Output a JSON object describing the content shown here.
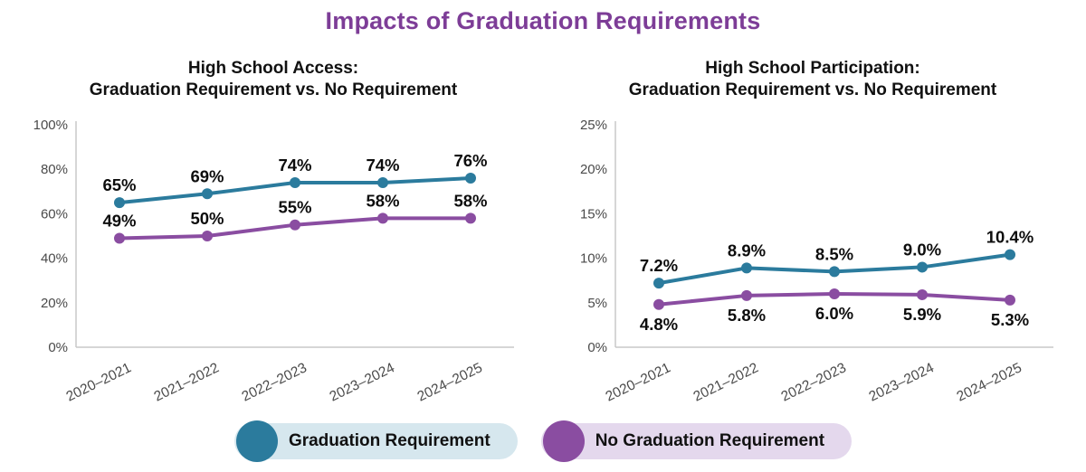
{
  "page_title": "Impacts of Graduation Requirements",
  "colors": {
    "title": "#7d3d97",
    "teal": "#2b7b9d",
    "purple": "#8a4da1",
    "legend_teal_bg": "#d6e7ee",
    "legend_purple_bg": "#e4d8ed",
    "axis_line": "#c9c9c9",
    "tick_text": "#4a4a4a"
  },
  "chart_data": [
    {
      "type": "line",
      "title_line1": "High School Access:",
      "title_line2": "Graduation Requirement vs. No Requirement",
      "categories": [
        "2020–2021",
        "2021–2022",
        "2022–2023",
        "2023–2024",
        "2024–2025"
      ],
      "xlabel": "",
      "ylabel": "",
      "ylim": [
        0,
        100
      ],
      "ytick_values": [
        0,
        20,
        40,
        60,
        80,
        100
      ],
      "ytick_labels": [
        "0%",
        "20%",
        "40%",
        "60%",
        "80%",
        "100%"
      ],
      "grid": false,
      "legend_position": "bottom",
      "series": [
        {
          "name": "Graduation Requirement",
          "color": "#2b7b9d",
          "values": [
            65,
            69,
            74,
            74,
            76
          ],
          "labels": [
            "65%",
            "69%",
            "74%",
            "74%",
            "76%"
          ],
          "label_position": "above"
        },
        {
          "name": "No Graduation Requirement",
          "color": "#8a4da1",
          "values": [
            49,
            50,
            55,
            58,
            58
          ],
          "labels": [
            "49%",
            "50%",
            "55%",
            "58%",
            "58%"
          ],
          "label_position": "above"
        }
      ]
    },
    {
      "type": "line",
      "title_line1": "High School Participation:",
      "title_line2": "Graduation Requirement vs. No Requirement",
      "categories": [
        "2020–2021",
        "2021–2022",
        "2022–2023",
        "2023–2024",
        "2024–2025"
      ],
      "xlabel": "",
      "ylabel": "",
      "ylim": [
        0,
        25
      ],
      "ytick_values": [
        0,
        5,
        10,
        15,
        20,
        25
      ],
      "ytick_labels": [
        "0%",
        "5%",
        "10%",
        "15%",
        "20%",
        "25%"
      ],
      "grid": false,
      "legend_position": "bottom",
      "series": [
        {
          "name": "Graduation Requirement",
          "color": "#2b7b9d",
          "values": [
            7.2,
            8.9,
            8.5,
            9.0,
            10.4
          ],
          "labels": [
            "7.2%",
            "8.9%",
            "8.5%",
            "9.0%",
            "10.4%"
          ],
          "label_position": "above"
        },
        {
          "name": "No Graduation Requirement",
          "color": "#8a4da1",
          "values": [
            4.8,
            5.8,
            6.0,
            5.9,
            5.3
          ],
          "labels": [
            "4.8%",
            "5.8%",
            "6.0%",
            "5.9%",
            "5.3%"
          ],
          "label_position": "below"
        }
      ]
    }
  ],
  "legend": {
    "items": [
      {
        "label": "Graduation Requirement",
        "circle_color": "#2b7b9d",
        "bg_color": "#d6e7ee"
      },
      {
        "label": "No Graduation Requirement",
        "circle_color": "#8a4da1",
        "bg_color": "#e4d8ed"
      }
    ]
  }
}
